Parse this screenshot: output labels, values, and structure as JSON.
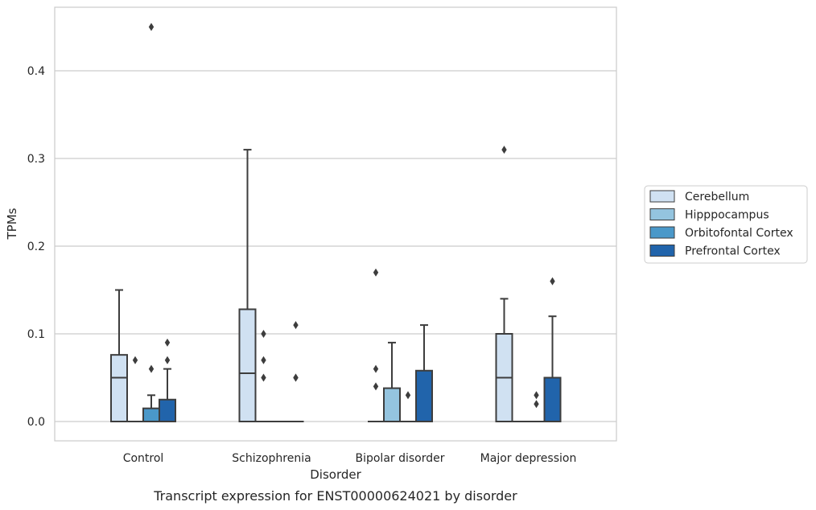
{
  "chart_data": {
    "type": "box",
    "title": "Transcript expression for ENST00000624021 by disorder",
    "xlabel": "Disorder",
    "ylabel": "TPMs",
    "ylim": [
      -0.022,
      0.475
    ],
    "yticks": [
      "0.0",
      "0.1",
      "0.2",
      "0.3",
      "0.4"
    ],
    "yticks_values": [
      0.0,
      0.1,
      0.2,
      0.3,
      0.4
    ],
    "grid": "horizontal",
    "legend_position": "right",
    "categories": [
      "Control",
      "Schizophrenia",
      "Bipolar disorder",
      "Major depression"
    ],
    "series": [
      {
        "name": "Cerebellum",
        "color": "#d0e1f2",
        "boxes": [
          {
            "q1": 0.0,
            "median": 0.05,
            "q3": 0.076,
            "whisker_low": 0.0,
            "whisker_high": 0.15,
            "outliers": []
          },
          {
            "q1": 0.0,
            "median": 0.055,
            "q3": 0.128,
            "whisker_low": 0.0,
            "whisker_high": 0.31,
            "outliers": []
          },
          {
            "q1": 0.0,
            "median": 0.0,
            "q3": 0.0,
            "whisker_low": 0.0,
            "whisker_high": 0.0,
            "outliers": [
              0.04,
              0.06,
              0.17
            ]
          },
          {
            "q1": 0.0,
            "median": 0.05,
            "q3": 0.1,
            "whisker_low": 0.0,
            "whisker_high": 0.14,
            "outliers": [
              0.31
            ]
          }
        ]
      },
      {
        "name": "Hipppocampus",
        "color": "#94c4df",
        "boxes": [
          {
            "q1": 0.0,
            "median": 0.0,
            "q3": 0.0,
            "whisker_low": 0.0,
            "whisker_high": 0.0,
            "outliers": [
              0.07
            ]
          },
          {
            "q1": 0.0,
            "median": 0.0,
            "q3": 0.0,
            "whisker_low": 0.0,
            "whisker_high": 0.0,
            "outliers": [
              0.05,
              0.07,
              0.1
            ]
          },
          {
            "q1": 0.0,
            "median": 0.0,
            "q3": 0.038,
            "whisker_low": 0.0,
            "whisker_high": 0.09,
            "outliers": []
          },
          {
            "q1": 0.0,
            "median": 0.0,
            "q3": 0.0,
            "whisker_low": 0.0,
            "whisker_high": 0.0,
            "outliers": []
          }
        ]
      },
      {
        "name": "Orbitofontal Cortex",
        "color": "#4a98c9",
        "boxes": [
          {
            "q1": 0.0,
            "median": 0.0,
            "q3": 0.015,
            "whisker_low": 0.0,
            "whisker_high": 0.03,
            "outliers": [
              0.06,
              0.45
            ]
          },
          {
            "q1": 0.0,
            "median": 0.0,
            "q3": 0.0,
            "whisker_low": 0.0,
            "whisker_high": 0.0,
            "outliers": []
          },
          {
            "q1": 0.0,
            "median": 0.0,
            "q3": 0.0,
            "whisker_low": 0.0,
            "whisker_high": 0.0,
            "outliers": [
              0.03
            ]
          },
          {
            "q1": 0.0,
            "median": 0.0,
            "q3": 0.0,
            "whisker_low": 0.0,
            "whisker_high": 0.0,
            "outliers": [
              0.02,
              0.03
            ]
          }
        ]
      },
      {
        "name": "Prefrontal Cortex",
        "color": "#2164ab",
        "boxes": [
          {
            "q1": 0.0,
            "median": 0.0,
            "q3": 0.025,
            "whisker_low": 0.0,
            "whisker_high": 0.06,
            "outliers": [
              0.07,
              0.09
            ]
          },
          {
            "q1": 0.0,
            "median": 0.0,
            "q3": 0.0,
            "whisker_low": 0.0,
            "whisker_high": 0.0,
            "outliers": [
              0.05,
              0.05,
              0.11
            ]
          },
          {
            "q1": 0.0,
            "median": 0.0,
            "q3": 0.058,
            "whisker_low": 0.0,
            "whisker_high": 0.11,
            "outliers": []
          },
          {
            "q1": 0.0,
            "median": 0.0,
            "q3": 0.05,
            "whisker_low": 0.0,
            "whisker_high": 0.12,
            "outliers": [
              0.16
            ]
          }
        ]
      }
    ]
  }
}
